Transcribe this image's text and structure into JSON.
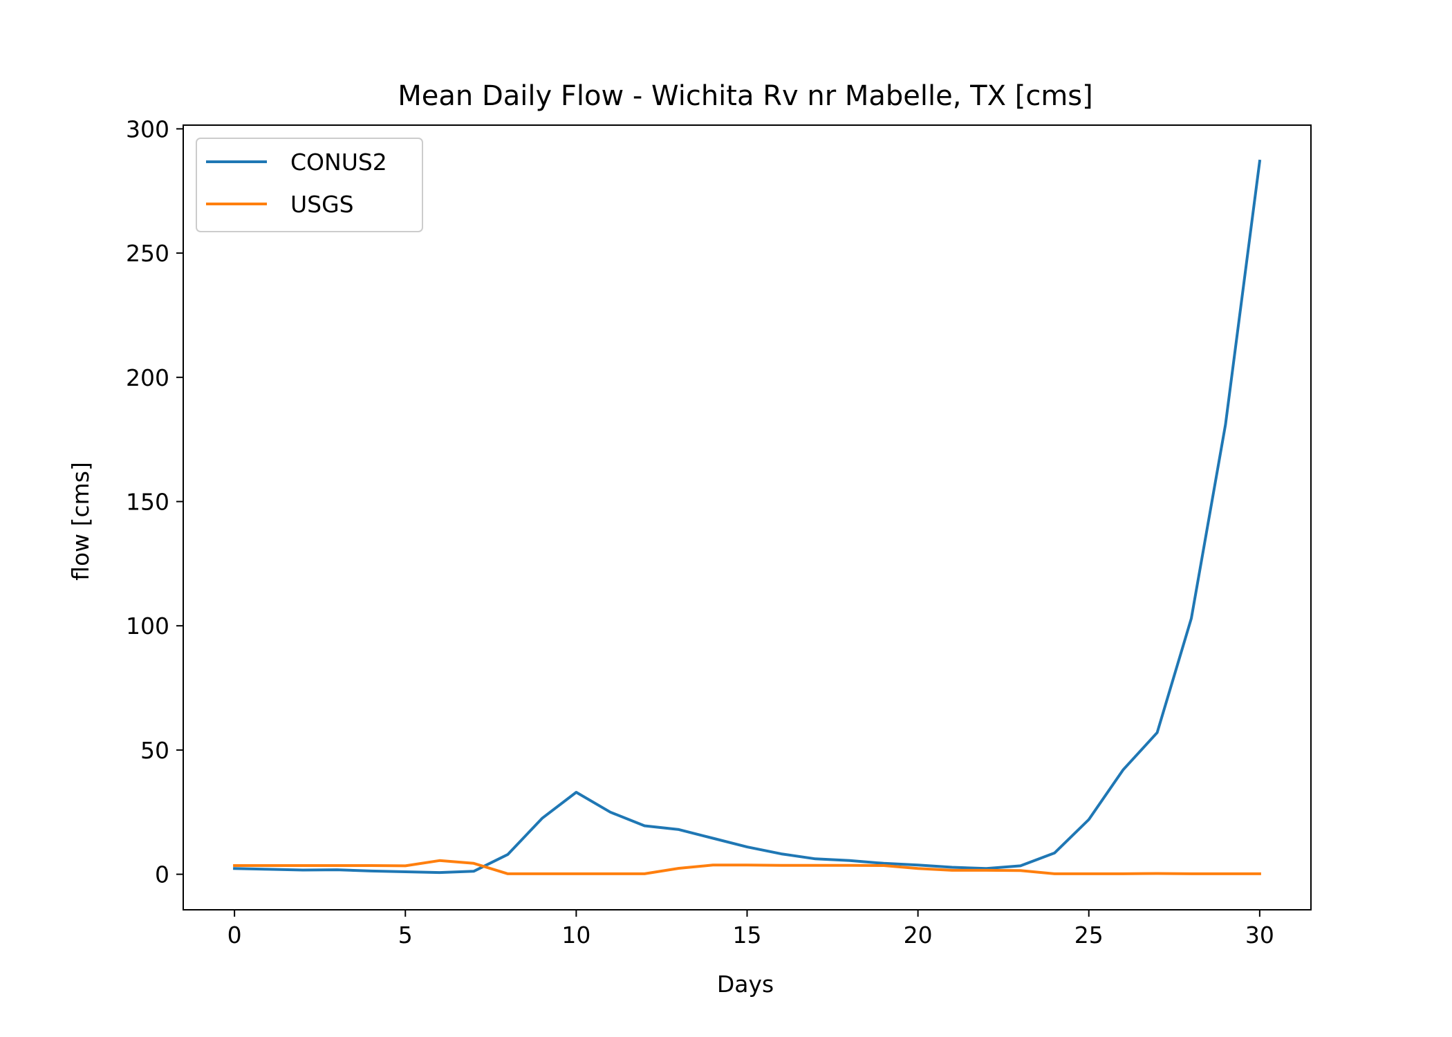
{
  "chart_data": {
    "type": "line",
    "title": "Mean Daily Flow - Wichita Rv nr Mabelle, TX [cms]",
    "xlabel": "Days",
    "ylabel": "flow [cms]",
    "xlim": [
      -1.5,
      31.5
    ],
    "ylim": [
      -14.3,
      301.5
    ],
    "xticks": [
      0,
      5,
      10,
      15,
      20,
      25,
      30
    ],
    "yticks": [
      0,
      50,
      100,
      150,
      200,
      250,
      300
    ],
    "grid": false,
    "legend_position": "upper left",
    "x": [
      0,
      1,
      2,
      3,
      4,
      5,
      6,
      7,
      8,
      9,
      10,
      11,
      12,
      13,
      14,
      15,
      16,
      17,
      18,
      19,
      20,
      21,
      22,
      23,
      24,
      25,
      26,
      27,
      28,
      29,
      30
    ],
    "series": [
      {
        "name": "CONUS2",
        "color": "#1f77b4",
        "values": [
          2.3,
          2.0,
          1.7,
          1.8,
          1.3,
          1.0,
          0.7,
          1.2,
          8.0,
          22.5,
          33.0,
          25.0,
          19.5,
          18.0,
          14.5,
          11.0,
          8.2,
          6.2,
          5.5,
          4.4,
          3.7,
          2.8,
          2.3,
          3.4,
          8.6,
          22.0,
          42.0,
          57.0,
          103.0,
          181.0,
          287.0
        ]
      },
      {
        "name": "USGS",
        "color": "#ff7f0e",
        "values": [
          3.5,
          3.5,
          3.5,
          3.5,
          3.5,
          3.4,
          5.5,
          4.4,
          0.2,
          0.2,
          0.2,
          0.2,
          0.2,
          2.4,
          3.7,
          3.7,
          3.6,
          3.6,
          3.6,
          3.5,
          2.3,
          1.6,
          1.6,
          1.5,
          0.2,
          0.2,
          0.2,
          0.3,
          0.2,
          0.2,
          0.2
        ]
      }
    ]
  }
}
